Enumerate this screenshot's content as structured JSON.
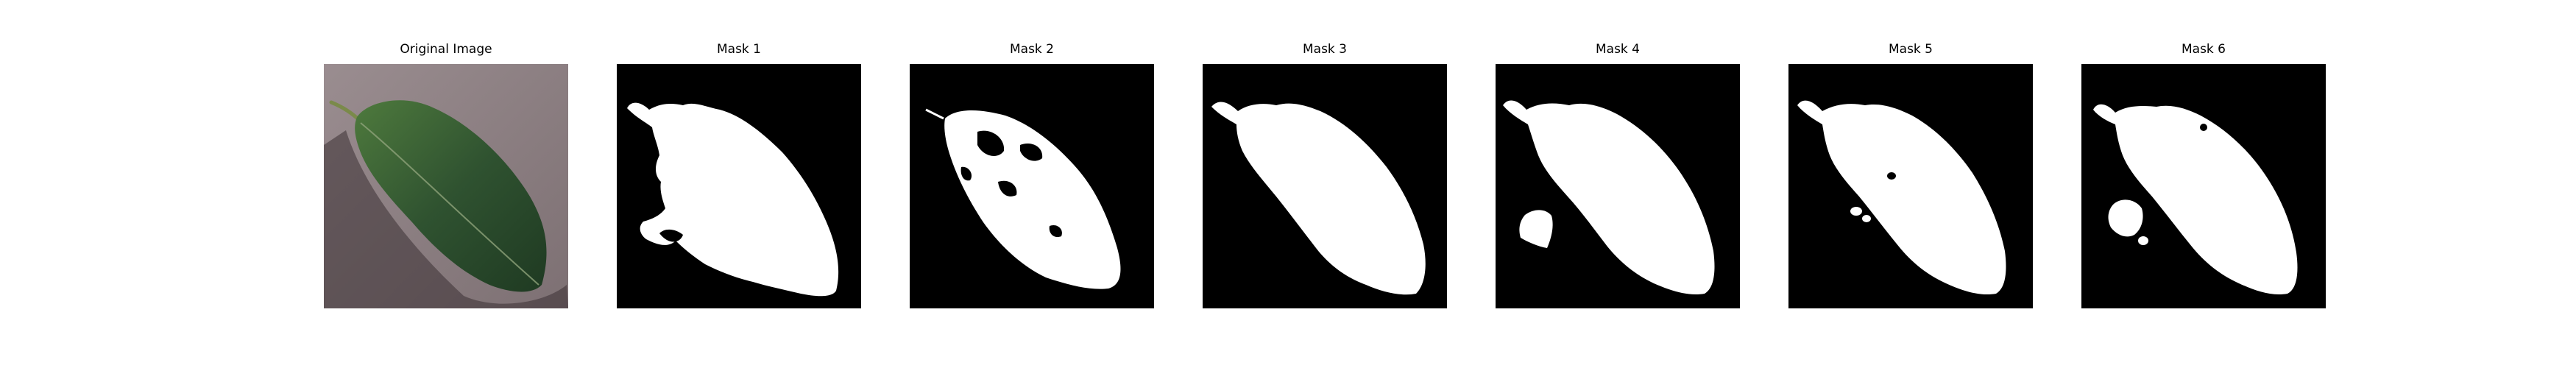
{
  "figure": {
    "panels": [
      {
        "title": "Original Image",
        "kind": "photo"
      },
      {
        "title": "Mask 1",
        "kind": "mask"
      },
      {
        "title": "Mask 2",
        "kind": "mask"
      },
      {
        "title": "Mask 3",
        "kind": "mask"
      },
      {
        "title": "Mask 4",
        "kind": "mask"
      },
      {
        "title": "Mask 5",
        "kind": "mask"
      },
      {
        "title": "Mask 6",
        "kind": "mask"
      }
    ]
  },
  "colors": {
    "background": "#ffffff",
    "mask_background": "#000000",
    "mask_foreground": "#ffffff",
    "photo_surface": "#8f8285",
    "leaf_dark": "#2b4a2a",
    "leaf_light": "#4f7a3e"
  }
}
